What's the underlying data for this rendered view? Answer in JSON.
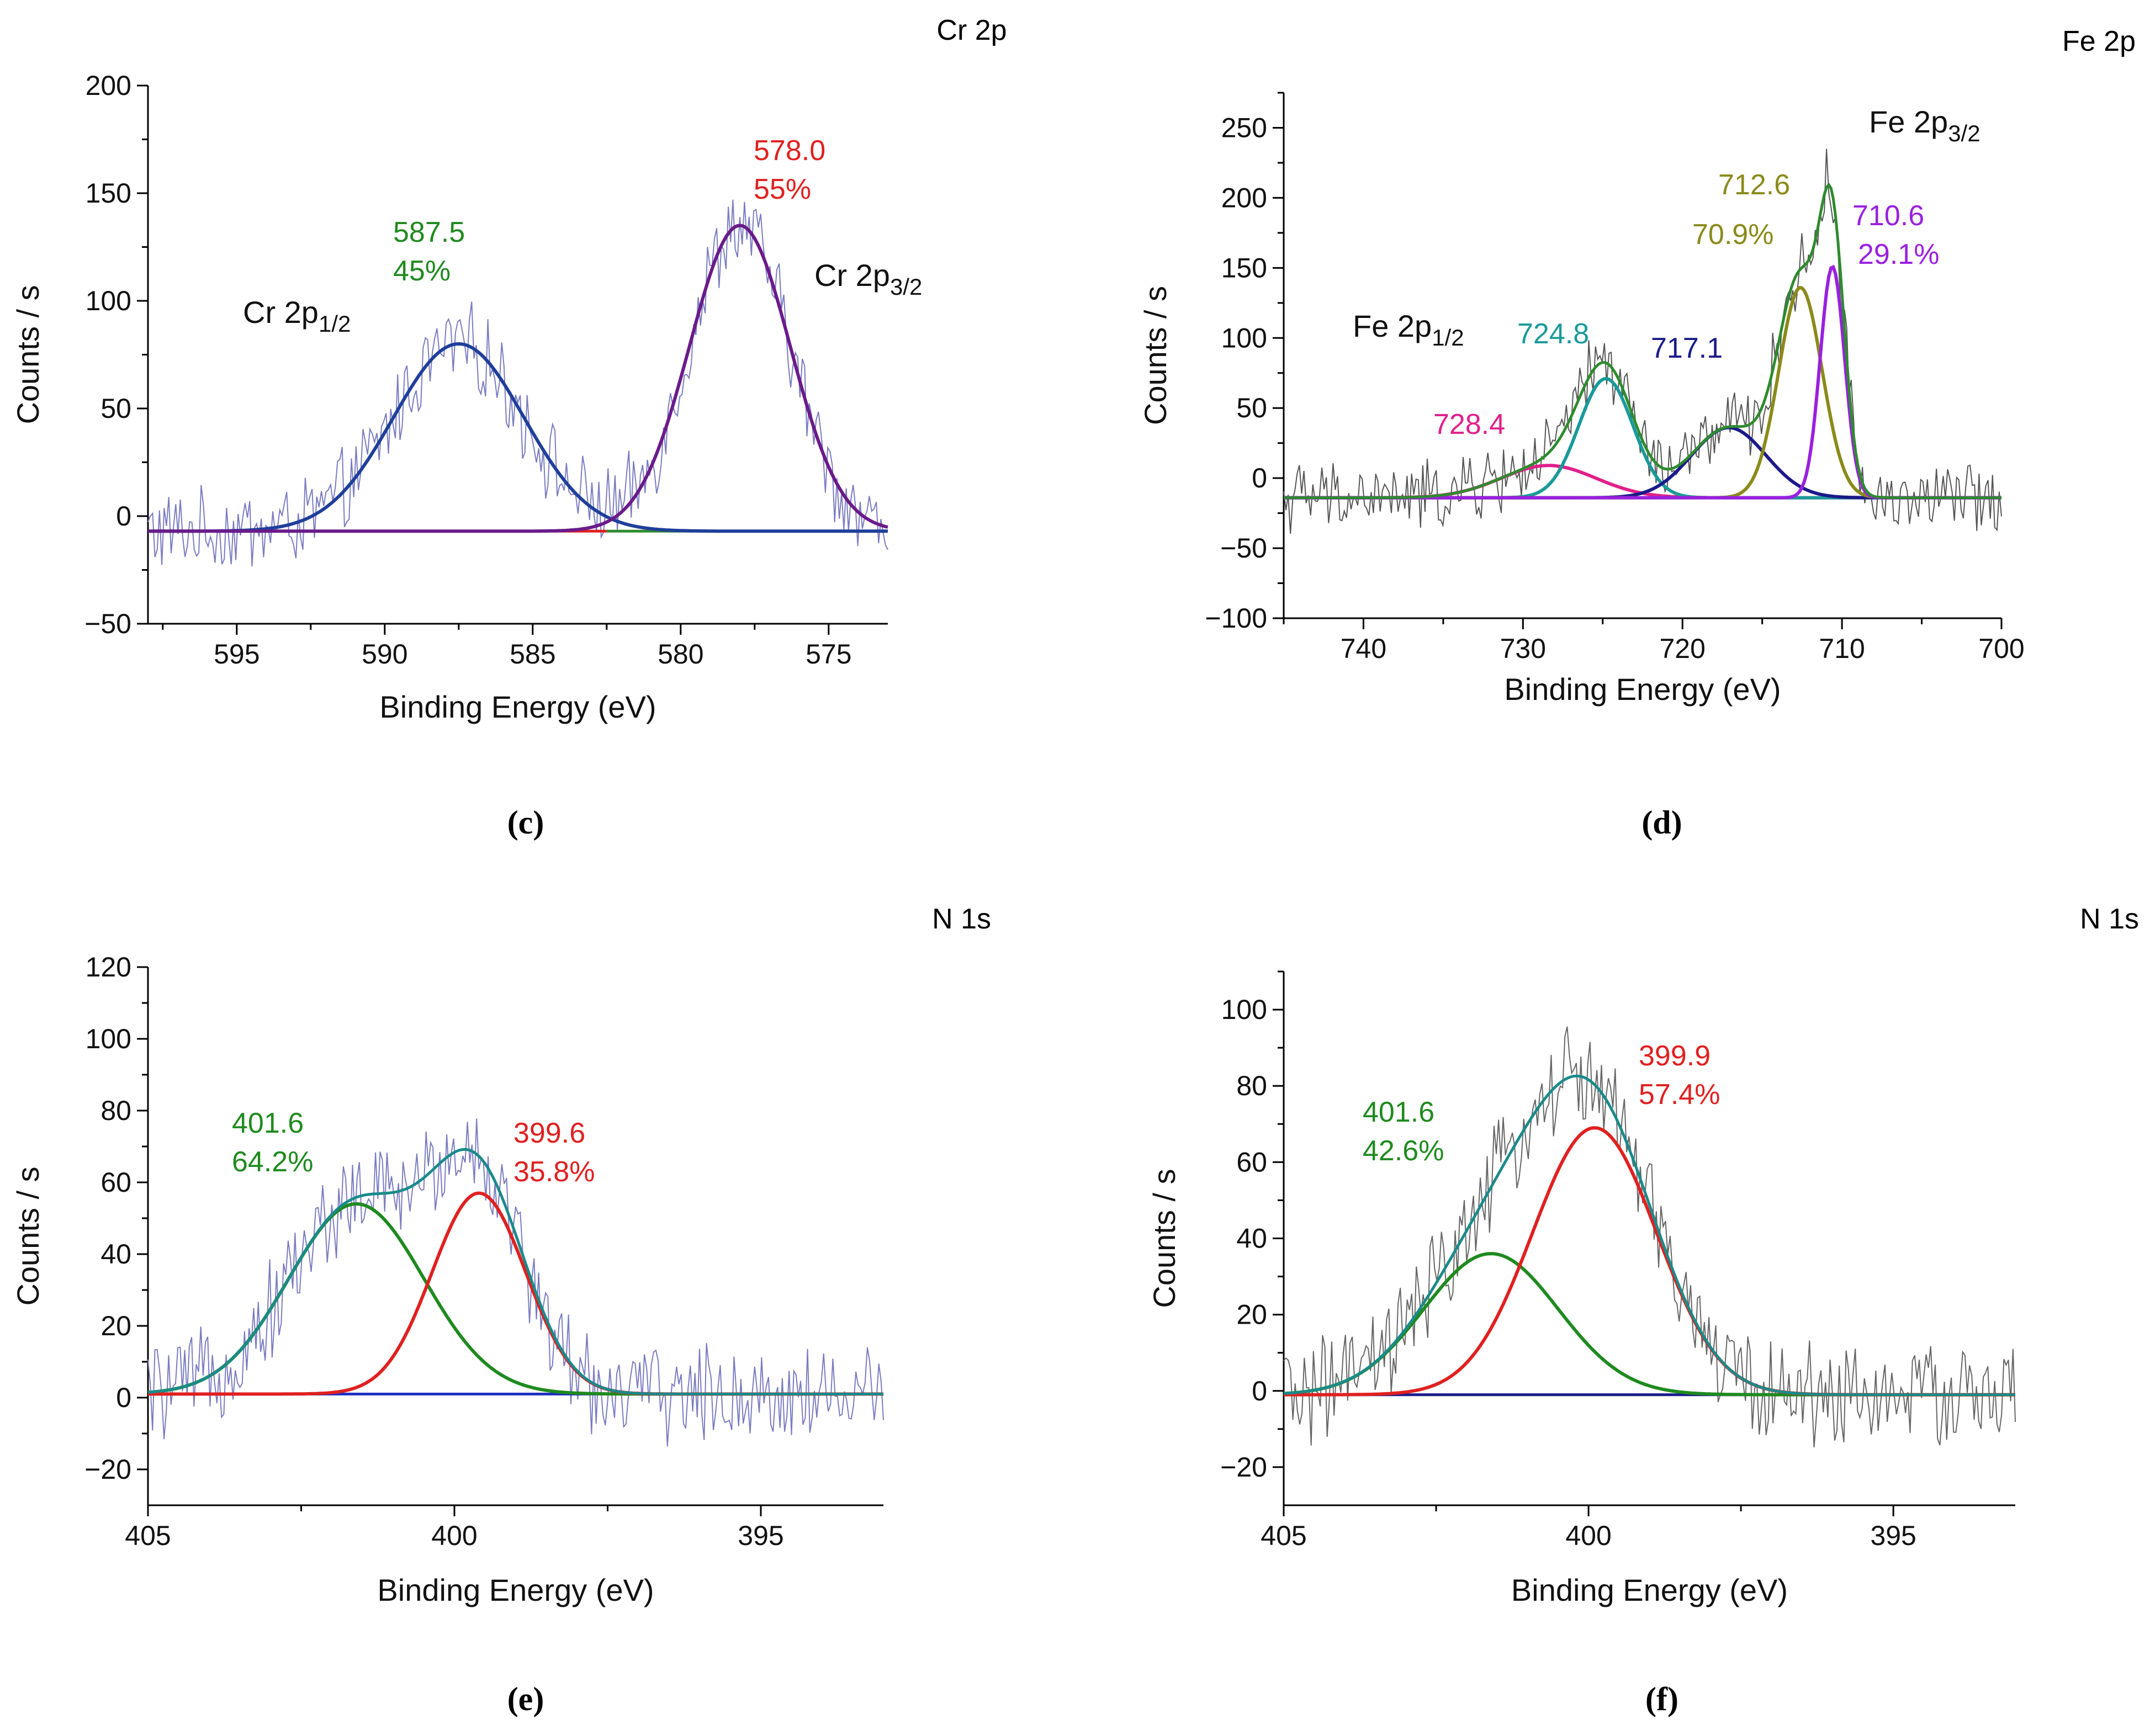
{
  "chart_data": [
    {
      "id": "c",
      "type": "line",
      "panel_label": "(c)",
      "title": "Cr 2p",
      "xlabel": "Binding Energy (eV)",
      "ylabel": "Counts / s",
      "xlim": [
        598,
        573
      ],
      "ylim": [
        -50,
        200
      ],
      "xticks": [
        595,
        590,
        585,
        580,
        575
      ],
      "yticks": [
        -50,
        0,
        50,
        100,
        150,
        200
      ],
      "tick_labels_y": [
        "−50",
        "0",
        "50",
        "100",
        "150",
        "200"
      ],
      "grid": false,
      "baseline": -7,
      "noise": 17,
      "raw_color": "#7a7cc0",
      "envelope_color": "",
      "series": [
        {
          "name": "Cr 2p1/2 fit",
          "center": 587.5,
          "height": 87,
          "fwhm": 5.2,
          "color": "#1f3f9a",
          "share": "45%"
        },
        {
          "name": "Cr 2p3/2 fit",
          "center": 578.0,
          "height": 142,
          "fwhm": 4.0,
          "color": "#6a1b8a",
          "share": "55%"
        }
      ],
      "backgrounds": [
        {
          "from": 592,
          "to": 582.5,
          "color": "#e02020"
        },
        {
          "from": 582.5,
          "to": 573,
          "color": "#2e8b2e"
        }
      ],
      "annotations": [
        {
          "text": "587.5",
          "color": "#1f8a1f"
        },
        {
          "text": "45%",
          "color": "#1f8a1f"
        },
        {
          "text": "578.0",
          "color": "#e02020"
        },
        {
          "text": "55%",
          "color": "#e02020"
        }
      ],
      "peak_labels": [
        {
          "base": "Cr 2p",
          "sub": "1/2"
        },
        {
          "base": "Cr 2p",
          "sub": "3/2"
        }
      ]
    },
    {
      "id": "d",
      "type": "line",
      "panel_label": "(d)",
      "title": "Fe 2p",
      "xlabel": "Binding Energy (eV)",
      "ylabel": "Counts / s",
      "xlim": [
        745,
        700
      ],
      "ylim": [
        -100,
        275
      ],
      "xticks": [
        740,
        730,
        720,
        710,
        700
      ],
      "yticks": [
        -100,
        -50,
        0,
        50,
        100,
        150,
        200,
        250
      ],
      "tick_labels_y": [
        "−100",
        "−50",
        "0",
        "50",
        "100",
        "150",
        "200",
        "250"
      ],
      "grid": false,
      "baseline": -14,
      "noise": 22,
      "raw_color": "#555555",
      "envelope_color": "#2e8b2e",
      "series": [
        {
          "name": "728.4 fit",
          "center": 728.4,
          "height": 23,
          "fwhm": 7.0,
          "color": "#e0208a"
        },
        {
          "name": "724.8 fit",
          "center": 724.8,
          "height": 85,
          "fwhm": 4.0,
          "color": "#1a9a9a"
        },
        {
          "name": "717.1 fit",
          "center": 717.1,
          "height": 50,
          "fwhm": 5.5,
          "color": "#1a1a8a"
        },
        {
          "name": "712.6 fit",
          "center": 712.6,
          "height": 150,
          "fwhm": 3.2,
          "color": "#8a8a1a",
          "share": "70.9%"
        },
        {
          "name": "710.6 fit",
          "center": 710.6,
          "height": 165,
          "fwhm": 1.8,
          "color": "#9a20e0",
          "share": "29.1%"
        }
      ],
      "backgrounds": [],
      "annotations": [
        {
          "text": "728.4",
          "color": "#e0208a"
        },
        {
          "text": "724.8",
          "color": "#1a9a9a"
        },
        {
          "text": "717.1",
          "color": "#1a1a8a"
        },
        {
          "text": "712.6",
          "color": "#8a8a1a"
        },
        {
          "text": "70.9%",
          "color": "#8a8a1a"
        },
        {
          "text": "710.6",
          "color": "#9a20e0"
        },
        {
          "text": "29.1%",
          "color": "#9a20e0"
        }
      ],
      "peak_labels": [
        {
          "base": "Fe 2p",
          "sub": "1/2"
        },
        {
          "base": "Fe 2p",
          "sub": "3/2"
        }
      ]
    },
    {
      "id": "e",
      "type": "line",
      "panel_label": "(e)",
      "title": "N 1s",
      "xlabel": "Binding Energy (eV)",
      "ylabel": "Counts / s",
      "xlim": [
        405,
        393
      ],
      "ylim": [
        -30,
        120
      ],
      "xticks": [
        405,
        400,
        395
      ],
      "yticks": [
        -20,
        0,
        20,
        40,
        60,
        80,
        100,
        120
      ],
      "tick_labels_y": [
        "−20",
        "0",
        "20",
        "40",
        "60",
        "80",
        "100",
        "120"
      ],
      "grid": false,
      "baseline": 1,
      "noise": 12,
      "raw_color": "#7a7cc0",
      "envelope_color": "#1a8a8a",
      "series": [
        {
          "name": "401.6 fit",
          "center": 401.6,
          "height": 53,
          "fwhm": 2.6,
          "color": "#1f8a1f",
          "share": "64.2%"
        },
        {
          "name": "399.6 fit",
          "center": 399.6,
          "height": 56,
          "fwhm": 1.8,
          "color": "#e02020",
          "share": "35.8%"
        }
      ],
      "backgrounds": [
        {
          "from": 405,
          "to": 393,
          "color": "#2030c0"
        }
      ],
      "annotations": [
        {
          "text": "401.6",
          "color": "#1f8a1f"
        },
        {
          "text": "64.2%",
          "color": "#1f8a1f"
        },
        {
          "text": "399.6",
          "color": "#e02020"
        },
        {
          "text": "35.8%",
          "color": "#e02020"
        }
      ],
      "peak_labels": []
    },
    {
      "id": "f",
      "type": "line",
      "panel_label": "(f)",
      "title": "N 1s",
      "xlabel": "Binding Energy (eV)",
      "ylabel": "Counts / s",
      "xlim": [
        405,
        393
      ],
      "ylim": [
        -30,
        110
      ],
      "xticks": [
        405,
        400,
        395
      ],
      "yticks": [
        -20,
        0,
        20,
        40,
        60,
        80,
        100
      ],
      "tick_labels_y": [
        "−20",
        "0",
        "20",
        "40",
        "60",
        "80",
        "100"
      ],
      "grid": false,
      "baseline": -1,
      "noise": 12,
      "raw_color": "#666666",
      "envelope_color": "#1a8a8a",
      "series": [
        {
          "name": "401.6 fit",
          "center": 401.6,
          "height": 37,
          "fwhm": 2.6,
          "color": "#1f8a1f",
          "share": "42.6%"
        },
        {
          "name": "399.9 fit",
          "center": 399.9,
          "height": 70,
          "fwhm": 2.4,
          "color": "#e02020",
          "share": "57.4%"
        }
      ],
      "backgrounds": [
        {
          "from": 405,
          "to": 393,
          "color": "#1a1a8a"
        }
      ],
      "annotations": [
        {
          "text": "401.6",
          "color": "#1f8a1f"
        },
        {
          "text": "42.6%",
          "color": "#1f8a1f"
        },
        {
          "text": "399.9",
          "color": "#e02020"
        },
        {
          "text": "57.4%",
          "color": "#e02020"
        }
      ],
      "peak_labels": []
    }
  ]
}
